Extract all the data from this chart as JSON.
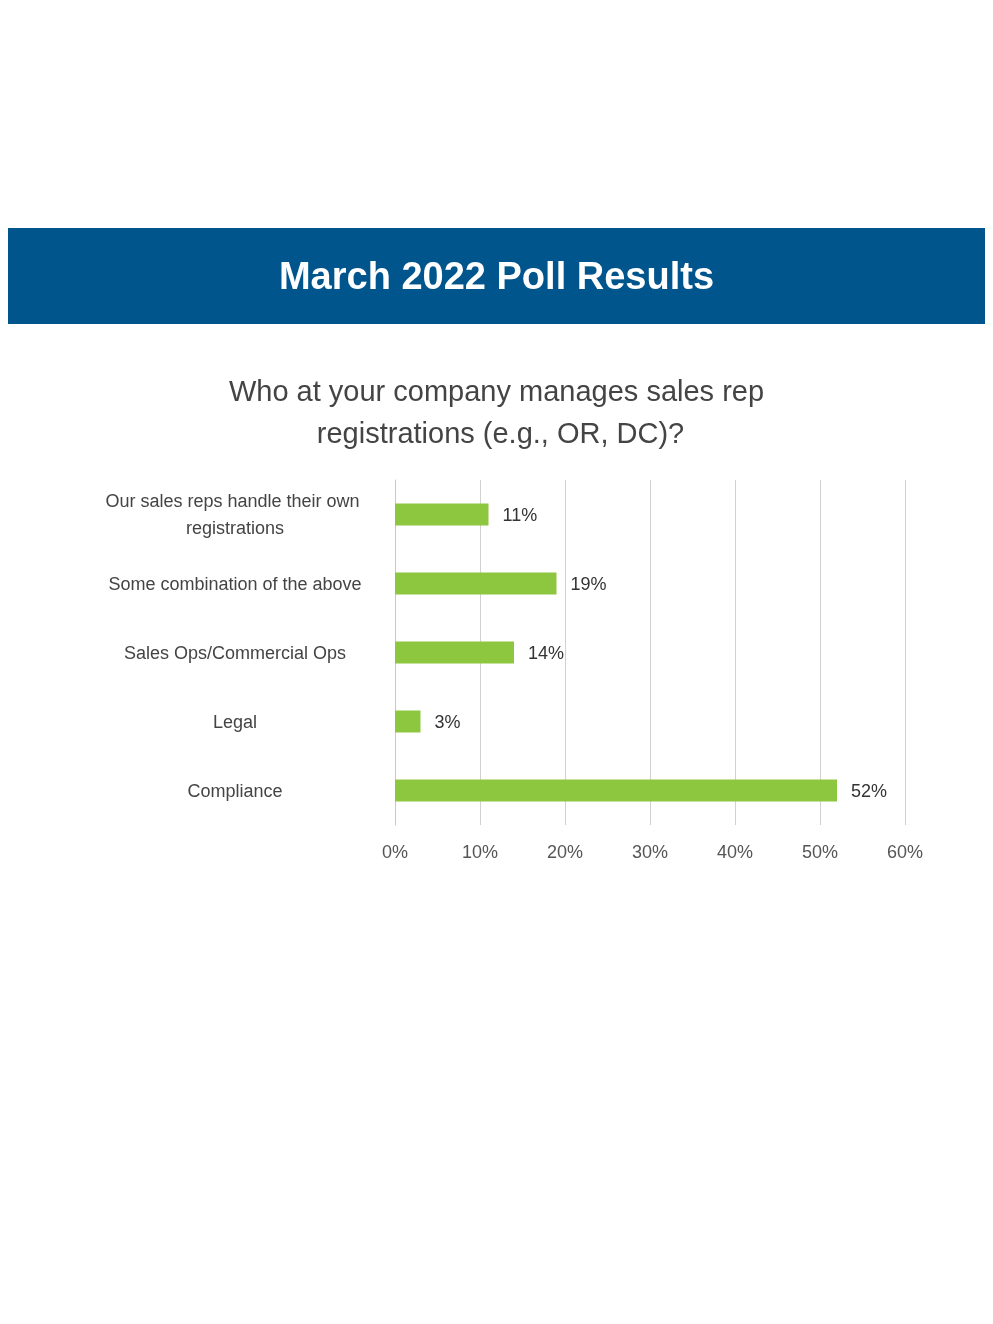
{
  "chart_data": {
    "type": "bar",
    "orientation": "horizontal",
    "title": "March 2022 Poll Results",
    "subtitle": "Who at your company manages sales rep registrations (e.g., OR, DC)?",
    "categories": [
      "Our sales reps handle their own registrations",
      "Some combination of the above",
      "Sales Ops/Commercial Ops",
      "Legal",
      "Compliance"
    ],
    "values": [
      11,
      19,
      14,
      3,
      52
    ],
    "value_labels": [
      "11%",
      "19%",
      "14%",
      "3%",
      "52%"
    ],
    "color": "#8dc63f",
    "xlim": [
      0,
      60
    ],
    "xticks": [
      {
        "value": 0,
        "label": "0%"
      },
      {
        "value": 10,
        "label": "10%"
      },
      {
        "value": 20,
        "label": "20%"
      },
      {
        "value": 30,
        "label": "30%"
      },
      {
        "value": 40,
        "label": "40%"
      },
      {
        "value": 50,
        "label": "50%"
      },
      {
        "value": 60,
        "label": "60%"
      }
    ],
    "grid": "x"
  }
}
